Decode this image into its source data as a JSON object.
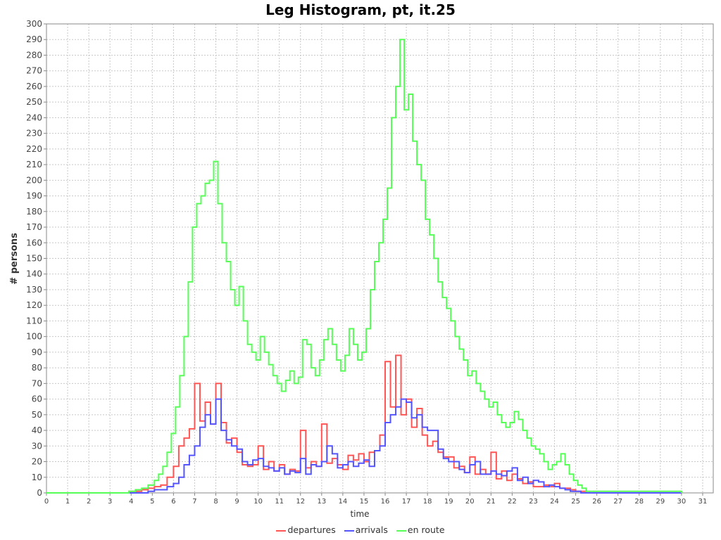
{
  "chart_data": {
    "type": "line",
    "title": "Leg Histogram, pt, it.25",
    "xlabel": "time",
    "ylabel": "# persons",
    "xlim": [
      0,
      31.5
    ],
    "ylim": [
      0,
      300
    ],
    "x_ticks": [
      0,
      1,
      2,
      3,
      4,
      5,
      6,
      7,
      8,
      9,
      10,
      11,
      12,
      13,
      14,
      15,
      16,
      17,
      18,
      19,
      20,
      21,
      22,
      23,
      24,
      25,
      26,
      27,
      28,
      29,
      30,
      31
    ],
    "y_ticks": [
      0,
      10,
      20,
      30,
      40,
      50,
      60,
      70,
      80,
      90,
      100,
      110,
      120,
      130,
      140,
      150,
      160,
      170,
      180,
      190,
      200,
      210,
      220,
      230,
      240,
      250,
      260,
      270,
      280,
      290,
      300
    ],
    "grid": true,
    "legend_position": "bottom",
    "step": true,
    "series": [
      {
        "name": "departures",
        "color": "#ff5555",
        "x": [
          0,
          3.9,
          4.2,
          4.5,
          4.8,
          5.1,
          5.4,
          5.7,
          6.0,
          6.25,
          6.5,
          6.75,
          7.0,
          7.25,
          7.5,
          7.75,
          8.0,
          8.25,
          8.5,
          8.75,
          9.0,
          9.25,
          9.5,
          9.75,
          10.0,
          10.25,
          10.5,
          10.75,
          11.0,
          11.25,
          11.5,
          11.75,
          12.0,
          12.25,
          12.5,
          12.75,
          13.0,
          13.25,
          13.5,
          13.75,
          14.0,
          14.25,
          14.5,
          14.75,
          15.0,
          15.25,
          15.5,
          15.75,
          16.0,
          16.25,
          16.5,
          16.75,
          17.0,
          17.25,
          17.5,
          17.75,
          18.0,
          18.25,
          18.5,
          18.75,
          19.0,
          19.25,
          19.5,
          19.75,
          20.0,
          20.25,
          20.5,
          20.75,
          21.0,
          21.25,
          21.5,
          21.75,
          22.0,
          22.25,
          22.5,
          22.75,
          23.0,
          23.25,
          23.5,
          23.75,
          24.0,
          24.25,
          24.5,
          24.75,
          25.0,
          25.25,
          25.5,
          25.75,
          26.0,
          30.0
        ],
        "values": [
          0,
          1,
          1,
          2,
          3,
          4,
          5,
          10,
          17,
          30,
          35,
          41,
          70,
          46,
          58,
          44,
          70,
          45,
          32,
          35,
          26,
          18,
          17,
          18,
          30,
          15,
          20,
          14,
          18,
          12,
          15,
          14,
          40,
          16,
          20,
          17,
          44,
          19,
          22,
          18,
          15,
          24,
          21,
          25,
          20,
          26,
          27,
          37,
          84,
          55,
          88,
          50,
          60,
          42,
          54,
          37,
          30,
          33,
          26,
          23,
          23,
          16,
          17,
          13,
          23,
          12,
          15,
          12,
          26,
          9,
          14,
          8,
          12,
          9,
          6,
          7,
          4,
          4,
          5,
          4,
          6,
          3,
          3,
          2,
          1,
          1,
          0,
          0,
          0,
          0
        ]
      },
      {
        "name": "arrivals",
        "color": "#5555ff",
        "x": [
          0,
          3.9,
          4.2,
          4.5,
          4.8,
          5.1,
          5.4,
          5.7,
          6.0,
          6.25,
          6.5,
          6.75,
          7.0,
          7.25,
          7.5,
          7.75,
          8.0,
          8.25,
          8.5,
          8.75,
          9.0,
          9.25,
          9.5,
          9.75,
          10.0,
          10.25,
          10.5,
          10.75,
          11.0,
          11.25,
          11.5,
          11.75,
          12.0,
          12.25,
          12.5,
          12.75,
          13.0,
          13.25,
          13.5,
          13.75,
          14.0,
          14.25,
          14.5,
          14.75,
          15.0,
          15.25,
          15.5,
          15.75,
          16.0,
          16.25,
          16.5,
          16.75,
          17.0,
          17.25,
          17.5,
          17.75,
          18.0,
          18.25,
          18.5,
          18.75,
          19.0,
          19.25,
          19.5,
          19.75,
          20.0,
          20.25,
          20.5,
          20.75,
          21.0,
          21.25,
          21.5,
          21.75,
          22.0,
          22.25,
          22.5,
          22.75,
          23.0,
          23.25,
          23.5,
          23.75,
          24.0,
          24.25,
          24.5,
          24.75,
          25.0,
          25.25,
          25.5,
          25.75,
          26.0,
          30.0
        ],
        "values": [
          0,
          0,
          0,
          0,
          1,
          2,
          2,
          4,
          6,
          10,
          18,
          24,
          30,
          42,
          50,
          44,
          60,
          40,
          34,
          30,
          28,
          20,
          18,
          21,
          22,
          17,
          16,
          14,
          16,
          12,
          14,
          13,
          22,
          12,
          18,
          17,
          20,
          30,
          25,
          16,
          18,
          20,
          17,
          19,
          21,
          17,
          27,
          30,
          45,
          50,
          55,
          60,
          58,
          48,
          50,
          42,
          40,
          40,
          28,
          22,
          20,
          20,
          15,
          13,
          18,
          20,
          12,
          12,
          14,
          12,
          11,
          14,
          16,
          8,
          10,
          6,
          8,
          7,
          4,
          5,
          4,
          3,
          2,
          1,
          1,
          0,
          0,
          0,
          0,
          0
        ]
      },
      {
        "name": "en route",
        "color": "#55ff55",
        "x": [
          0,
          3.9,
          4.2,
          4.5,
          4.8,
          5.1,
          5.3,
          5.5,
          5.7,
          5.9,
          6.1,
          6.3,
          6.5,
          6.7,
          6.9,
          7.1,
          7.3,
          7.5,
          7.7,
          7.9,
          8.1,
          8.3,
          8.5,
          8.7,
          8.9,
          9.1,
          9.3,
          9.5,
          9.7,
          9.9,
          10.1,
          10.3,
          10.5,
          10.7,
          10.9,
          11.1,
          11.3,
          11.5,
          11.7,
          11.9,
          12.1,
          12.3,
          12.5,
          12.7,
          12.9,
          13.1,
          13.3,
          13.5,
          13.7,
          13.9,
          14.1,
          14.3,
          14.5,
          14.7,
          14.9,
          15.1,
          15.3,
          15.5,
          15.7,
          15.9,
          16.1,
          16.3,
          16.5,
          16.7,
          16.9,
          17.1,
          17.3,
          17.5,
          17.7,
          17.9,
          18.1,
          18.3,
          18.5,
          18.7,
          18.9,
          19.1,
          19.3,
          19.5,
          19.7,
          19.9,
          20.1,
          20.3,
          20.5,
          20.7,
          20.9,
          21.1,
          21.3,
          21.5,
          21.7,
          21.9,
          22.1,
          22.3,
          22.5,
          22.7,
          22.9,
          23.1,
          23.3,
          23.5,
          23.7,
          23.9,
          24.1,
          24.3,
          24.5,
          24.7,
          24.9,
          25.1,
          25.3,
          25.5,
          25.7,
          30.0
        ],
        "values": [
          0,
          1,
          2,
          3,
          5,
          8,
          12,
          17,
          26,
          38,
          55,
          75,
          100,
          135,
          170,
          185,
          190,
          198,
          200,
          212,
          185,
          160,
          148,
          130,
          120,
          132,
          110,
          95,
          90,
          85,
          100,
          90,
          82,
          75,
          70,
          65,
          72,
          78,
          70,
          74,
          98,
          95,
          80,
          75,
          85,
          98,
          105,
          95,
          85,
          78,
          88,
          105,
          95,
          85,
          90,
          105,
          130,
          148,
          160,
          175,
          195,
          240,
          260,
          290,
          245,
          255,
          225,
          210,
          200,
          175,
          165,
          150,
          135,
          125,
          118,
          110,
          100,
          92,
          85,
          75,
          78,
          70,
          65,
          60,
          55,
          58,
          50,
          45,
          42,
          45,
          52,
          47,
          40,
          35,
          30,
          28,
          25,
          20,
          15,
          18,
          20,
          25,
          18,
          12,
          8,
          5,
          3,
          1,
          1,
          0
        ]
      }
    ]
  }
}
